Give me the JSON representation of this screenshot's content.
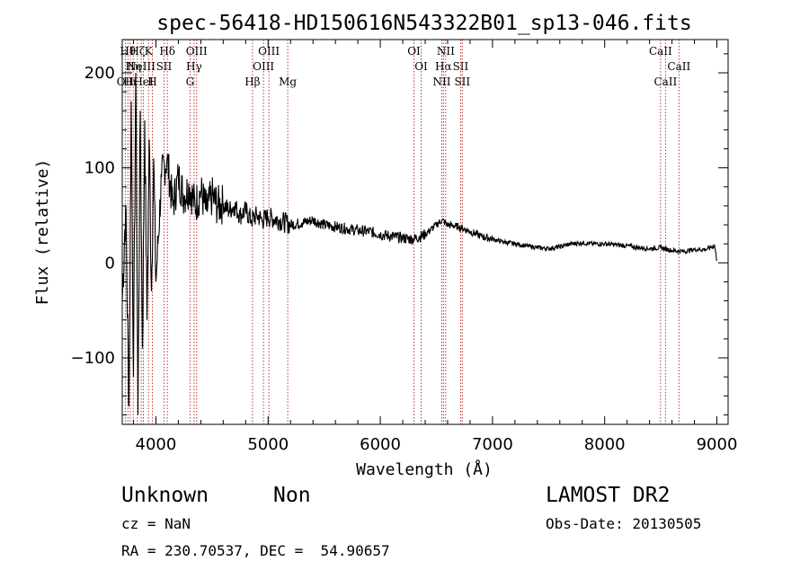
{
  "chart_data": {
    "type": "line",
    "title": "spec-56418-HD150616N543322B01_sp13-046.fits",
    "xlabel": "Wavelength (Å)",
    "ylabel": "Flux (relative)",
    "xlim": [
      3700,
      9100
    ],
    "ylim": [
      -170,
      235
    ],
    "xticks": [
      4000,
      5000,
      6000,
      7000,
      8000,
      9000
    ],
    "xtick_labels": [
      "4000",
      "5000",
      "6000",
      "7000",
      "8000",
      "9000"
    ],
    "yticks": [
      -100,
      0,
      100,
      200
    ],
    "ytick_labels": [
      "−100",
      "0",
      "100",
      "200"
    ],
    "grid": false,
    "series": [
      {
        "color": "#000000",
        "x": [
          3700,
          3730,
          3760,
          3780,
          3800,
          3820,
          3840,
          3860,
          3880,
          3900,
          3920,
          3940,
          3960,
          3980,
          4000,
          4050,
          4100,
          4150,
          4200,
          4250,
          4300,
          4350,
          4400,
          4450,
          4500,
          4550,
          4600,
          4650,
          4700,
          4750,
          4800,
          4850,
          4900,
          4950,
          5000,
          5100,
          5200,
          5300,
          5400,
          5500,
          5600,
          5700,
          5800,
          5900,
          6000,
          6100,
          6200,
          6300,
          6400,
          6500,
          6550,
          6600,
          6700,
          6800,
          6900,
          7000,
          7100,
          7200,
          7300,
          7400,
          7500,
          7600,
          7700,
          7800,
          7900,
          8000,
          8100,
          8200,
          8300,
          8400,
          8500,
          8600,
          8700,
          8800,
          8900,
          8980,
          9000
        ],
        "y": [
          -40,
          60,
          -150,
          170,
          -120,
          200,
          -160,
          160,
          -90,
          150,
          -60,
          130,
          -30,
          110,
          -20,
          90,
          110,
          60,
          90,
          70,
          80,
          60,
          75,
          55,
          70,
          60,
          62,
          55,
          60,
          50,
          55,
          45,
          50,
          45,
          48,
          45,
          40,
          42,
          45,
          40,
          38,
          36,
          34,
          33,
          30,
          28,
          26,
          25,
          30,
          40,
          45,
          40,
          38,
          33,
          28,
          25,
          22,
          20,
          18,
          16,
          15,
          17,
          20,
          21,
          20,
          20,
          19,
          18,
          16,
          15,
          16,
          13,
          12,
          14,
          14,
          18,
          2
        ]
      }
    ],
    "line_markers": [
      {
        "wavelength": 3727,
        "label": "OII",
        "row": 2
      },
      {
        "wavelength": 3750,
        "label": "Hθ",
        "row": 0
      },
      {
        "wavelength": 3771,
        "label": "Hι",
        "row": 2
      },
      {
        "wavelength": 3798,
        "label": "Hη",
        "row": 1
      },
      {
        "wavelength": 3835,
        "label": "Hζ",
        "row": 0
      },
      {
        "wavelength": 3869,
        "label": "NeIII",
        "row": 1
      },
      {
        "wavelength": 3889,
        "label": "HeI",
        "row": 2
      },
      {
        "wavelength": 3934,
        "label": "K",
        "row": 0
      },
      {
        "wavelength": 3968,
        "label": "H",
        "row": 2
      },
      {
        "wavelength": 4072,
        "label": "SII",
        "row": 1
      },
      {
        "wavelength": 4102,
        "label": "Hδ",
        "row": 0
      },
      {
        "wavelength": 4304,
        "label": "G",
        "row": 2
      },
      {
        "wavelength": 4340,
        "label": "Hγ",
        "row": 1
      },
      {
        "wavelength": 4363,
        "label": "OIII",
        "row": 0
      },
      {
        "wavelength": 4861,
        "label": "Hβ",
        "row": 2
      },
      {
        "wavelength": 4959,
        "label": "OIII",
        "row": 1
      },
      {
        "wavelength": 5007,
        "label": "OIII",
        "row": 0
      },
      {
        "wavelength": 5175,
        "label": "Mg",
        "row": 2
      },
      {
        "wavelength": 6300,
        "label": "OI",
        "row": 0
      },
      {
        "wavelength": 6364,
        "label": "OI",
        "row": 1
      },
      {
        "wavelength": 6548,
        "label": "NII",
        "row": 2
      },
      {
        "wavelength": 6563,
        "label": "Hα",
        "row": 1
      },
      {
        "wavelength": 6583,
        "label": "NII",
        "row": 0
      },
      {
        "wavelength": 6716,
        "label": "SII",
        "row": 1
      },
      {
        "wavelength": 6731,
        "label": "SII",
        "row": 2
      },
      {
        "wavelength": 8498,
        "label": "CaII",
        "row": 0
      },
      {
        "wavelength": 8542,
        "label": "CaII",
        "row": 2
      },
      {
        "wavelength": 8662,
        "label": "CaII",
        "row": 1
      }
    ]
  },
  "info": {
    "class_label": "Unknown",
    "subclass_label": "Non",
    "survey": "LAMOST DR2",
    "cz": "cz = NaN",
    "obs_date": "Obs-Date: 20130505",
    "coords": "RA = 230.70537, DEC =  54.90657"
  }
}
